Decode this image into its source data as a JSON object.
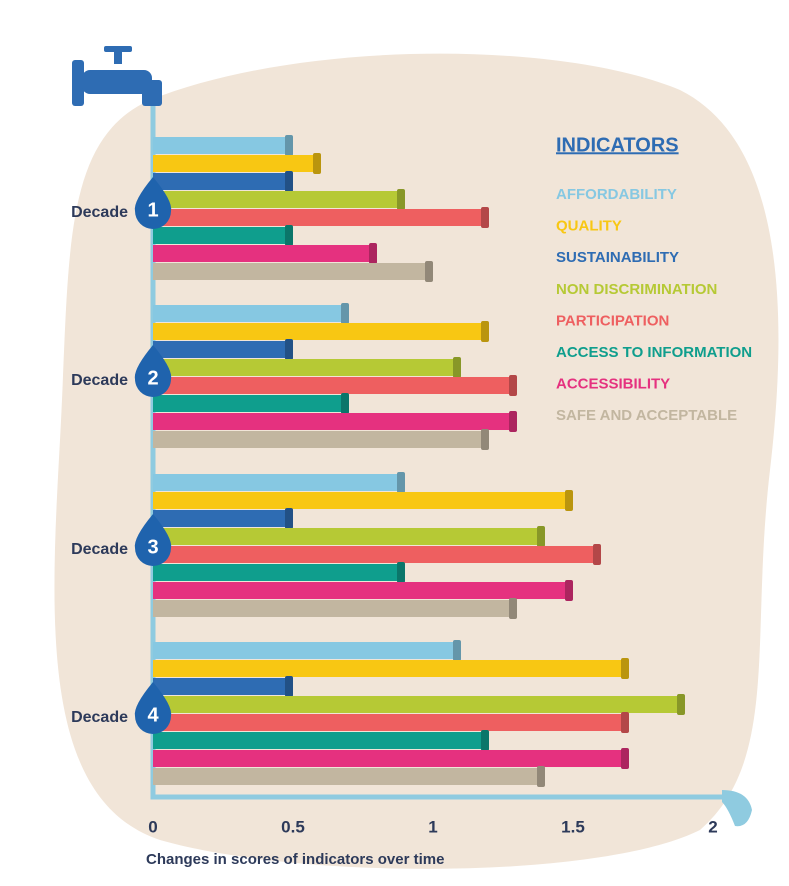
{
  "chart_data": {
    "type": "bar",
    "orientation": "horizontal",
    "group_label": "Decade",
    "categories": [
      "1",
      "2",
      "3",
      "4"
    ],
    "legend_title": "INDICATORS",
    "xlabel": "Changes in scores of indicators over time",
    "xlim": [
      0,
      2
    ],
    "xticks": [
      0,
      0.5,
      1,
      1.5,
      2
    ],
    "series": [
      {
        "name": "AFFORDABILITY",
        "color": "#86c8e2",
        "values": [
          0.5,
          0.7,
          0.9,
          1.1
        ]
      },
      {
        "name": "QUALITY",
        "color": "#f8c713",
        "values": [
          0.6,
          1.2,
          1.5,
          1.7
        ]
      },
      {
        "name": "SUSTAINABILITY",
        "color": "#2e6cb3",
        "values": [
          0.5,
          0.5,
          0.5,
          0.5
        ]
      },
      {
        "name": "NON DISCRIMINATION",
        "color": "#b6c935",
        "values": [
          0.9,
          1.1,
          1.4,
          1.9
        ]
      },
      {
        "name": "PARTICIPATION",
        "color": "#ee5f60",
        "values": [
          1.2,
          1.3,
          1.6,
          1.7
        ]
      },
      {
        "name": "ACCESS TO INFORMATION",
        "color": "#0f9e8d",
        "values": [
          0.5,
          0.7,
          0.9,
          1.2
        ]
      },
      {
        "name": "ACCESSIBILITY",
        "color": "#e5317f",
        "values": [
          0.8,
          1.3,
          1.5,
          1.7
        ]
      },
      {
        "name": "SAFE AND ACCEPTABLE",
        "color": "#c2b6a0",
        "values": [
          1.0,
          1.2,
          1.3,
          1.4
        ]
      }
    ]
  }
}
